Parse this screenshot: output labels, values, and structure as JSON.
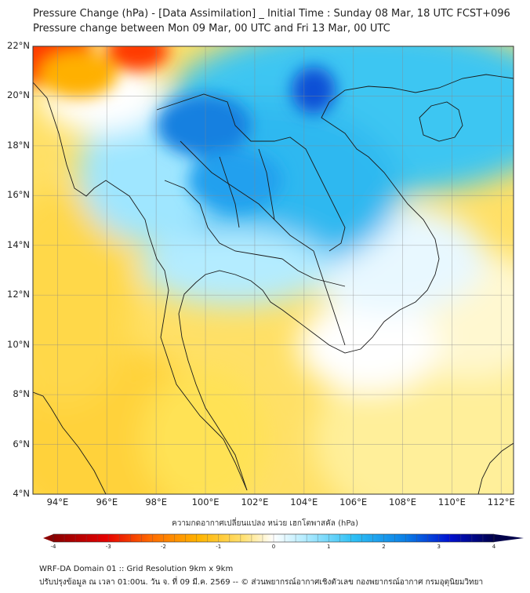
{
  "title_line1": "Pressure Change (hPa) - [Data Assimilation] _ Initial Time : Sunday 08 Mar, 18 UTC FCST+096",
  "title_line2": "Pressure change between Mon 09 Mar, 00 UTC and Fri 13 Mar, 00 UTC",
  "map": {
    "lat_range": [
      4,
      22
    ],
    "lon_range": [
      93,
      112.5
    ],
    "lat_ticks": [
      {
        "value": 4,
        "label": "4°N"
      },
      {
        "value": 6,
        "label": "6°N"
      },
      {
        "value": 8,
        "label": "8°N"
      },
      {
        "value": 10,
        "label": "10°N"
      },
      {
        "value": 12,
        "label": "12°N"
      },
      {
        "value": 14,
        "label": "14°N"
      },
      {
        "value": 16,
        "label": "16°N"
      },
      {
        "value": 18,
        "label": "18°N"
      },
      {
        "value": 20,
        "label": "20°N"
      },
      {
        "value": 22,
        "label": "22°N"
      }
    ],
    "lon_ticks": [
      {
        "value": 94,
        "label": "94°E"
      },
      {
        "value": 96,
        "label": "96°E"
      },
      {
        "value": 98,
        "label": "98°E"
      },
      {
        "value": 100,
        "label": "100°E"
      },
      {
        "value": 102,
        "label": "102°E"
      },
      {
        "value": 104,
        "label": "104°E"
      },
      {
        "value": 106,
        "label": "106°E"
      },
      {
        "value": 108,
        "label": "108°E"
      },
      {
        "value": 110,
        "label": "110°E"
      },
      {
        "value": 112,
        "label": "112°E"
      }
    ],
    "grid": true
  },
  "colorbar": {
    "title": "ความกดอากาศเปลี่ยนแปลง หน่วย เฮกโตพาสคัล (hPa)",
    "min": -4,
    "max": 4,
    "ticks": [
      {
        "value": -4,
        "label": "-4"
      },
      {
        "value": -3,
        "label": "-3"
      },
      {
        "value": -2,
        "label": "-2"
      },
      {
        "value": -1,
        "label": "-1"
      },
      {
        "value": 0,
        "label": "0"
      },
      {
        "value": 1,
        "label": "1"
      },
      {
        "value": 2,
        "label": "2"
      },
      {
        "value": 3,
        "label": "3"
      },
      {
        "value": 4,
        "label": "4"
      }
    ],
    "colors": {
      "neg_max": "#8b0000",
      "neg_mid": "#ff4a00",
      "neg_low": "#ffd23a",
      "zero": "#ffffff",
      "pos_low": "#9fe6ff",
      "pos_mid": "#1fa8f0",
      "pos_max": "#00004a"
    }
  },
  "footer_line1": "WRF-DA Domain 01 :: Grid Resolution 9km x 9km",
  "footer_line2": "ปรับปรุงข้อมูล ณ เวลา 01:00น. วัน จ. ที่ 09 มี.ค. 2569 -- © ส่วนพยากรณ์อากาศเชิงตัวเลข กองพยากรณ์อากาศ กรมอุตุนิยมวิทยา"
}
